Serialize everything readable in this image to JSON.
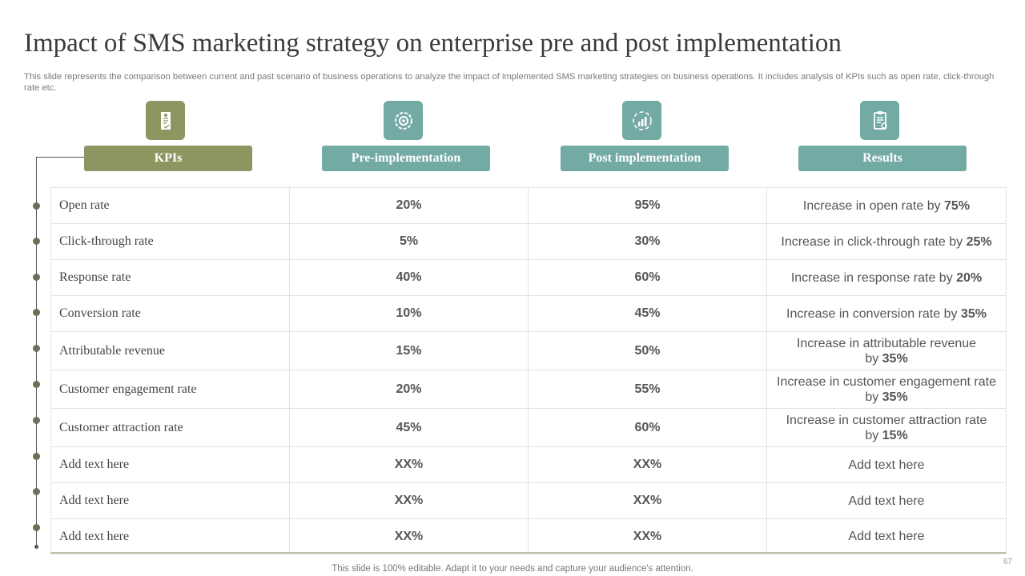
{
  "title": "Impact of SMS marketing strategy on enterprise pre and post implementation",
  "subtitle": "This slide represents the comparison between current and past scenario of business operations to analyze the impact of implemented SMS marketing strategies on business operations. It includes analysis of KPIs such as open rate, click-through rate etc.",
  "headers": {
    "kpis": "KPIs",
    "pre": "Pre-implementation",
    "post": "Post implementation",
    "results": "Results"
  },
  "icons": [
    "price-tag-icon",
    "target-gear-icon",
    "growth-chart-icon",
    "checklist-icon"
  ],
  "colors": {
    "olive": "#8c9660",
    "teal": "#73aaa4"
  },
  "rows": [
    {
      "kpi": "Open rate",
      "pre": "20%",
      "post": "95%",
      "result_prefix": "Increase  in open rate by ",
      "result_bold": "75%"
    },
    {
      "kpi": "Click-through rate",
      "pre": "5%",
      "post": "30%",
      "result_prefix": "Increase  in click-through  rate by ",
      "result_bold": "25%"
    },
    {
      "kpi": "Response rate",
      "pre": "40%",
      "post": "60%",
      "result_prefix": "Increase  in response rate by ",
      "result_bold": "20%"
    },
    {
      "kpi": "Conversion rate",
      "pre": "10%",
      "post": "45%",
      "result_prefix": "Increase  in conversion  rate by ",
      "result_bold": "35%"
    },
    {
      "kpi": "Attributable revenue",
      "pre": "15%",
      "post": "50%",
      "result_line1": "Increase  in attributable  revenue",
      "result_prefix": "by ",
      "result_bold": "35%"
    },
    {
      "kpi": "Customer engagement rate",
      "pre": "20%",
      "post": "55%",
      "result_line1": "Increase  in customer  engagement rate",
      "result_prefix": "by ",
      "result_bold": "35%"
    },
    {
      "kpi": "Customer attraction rate",
      "pre": "45%",
      "post": "60%",
      "result_line1": "Increase  in customer  attraction rate",
      "result_prefix": "by ",
      "result_bold": "15%"
    },
    {
      "kpi": "Add text here",
      "pre": "XX%",
      "post": "XX%",
      "result_prefix": "Add text here",
      "result_bold": ""
    },
    {
      "kpi": "Add text here",
      "pre": "XX%",
      "post": "XX%",
      "result_prefix": "Add text here",
      "result_bold": ""
    },
    {
      "kpi": "Add text here",
      "pre": "XX%",
      "post": "XX%",
      "result_prefix": "Add text here",
      "result_bold": ""
    }
  ],
  "footer": "This slide is 100% editable. Adapt it to your needs and capture your audience's attention.",
  "page_number": "67"
}
